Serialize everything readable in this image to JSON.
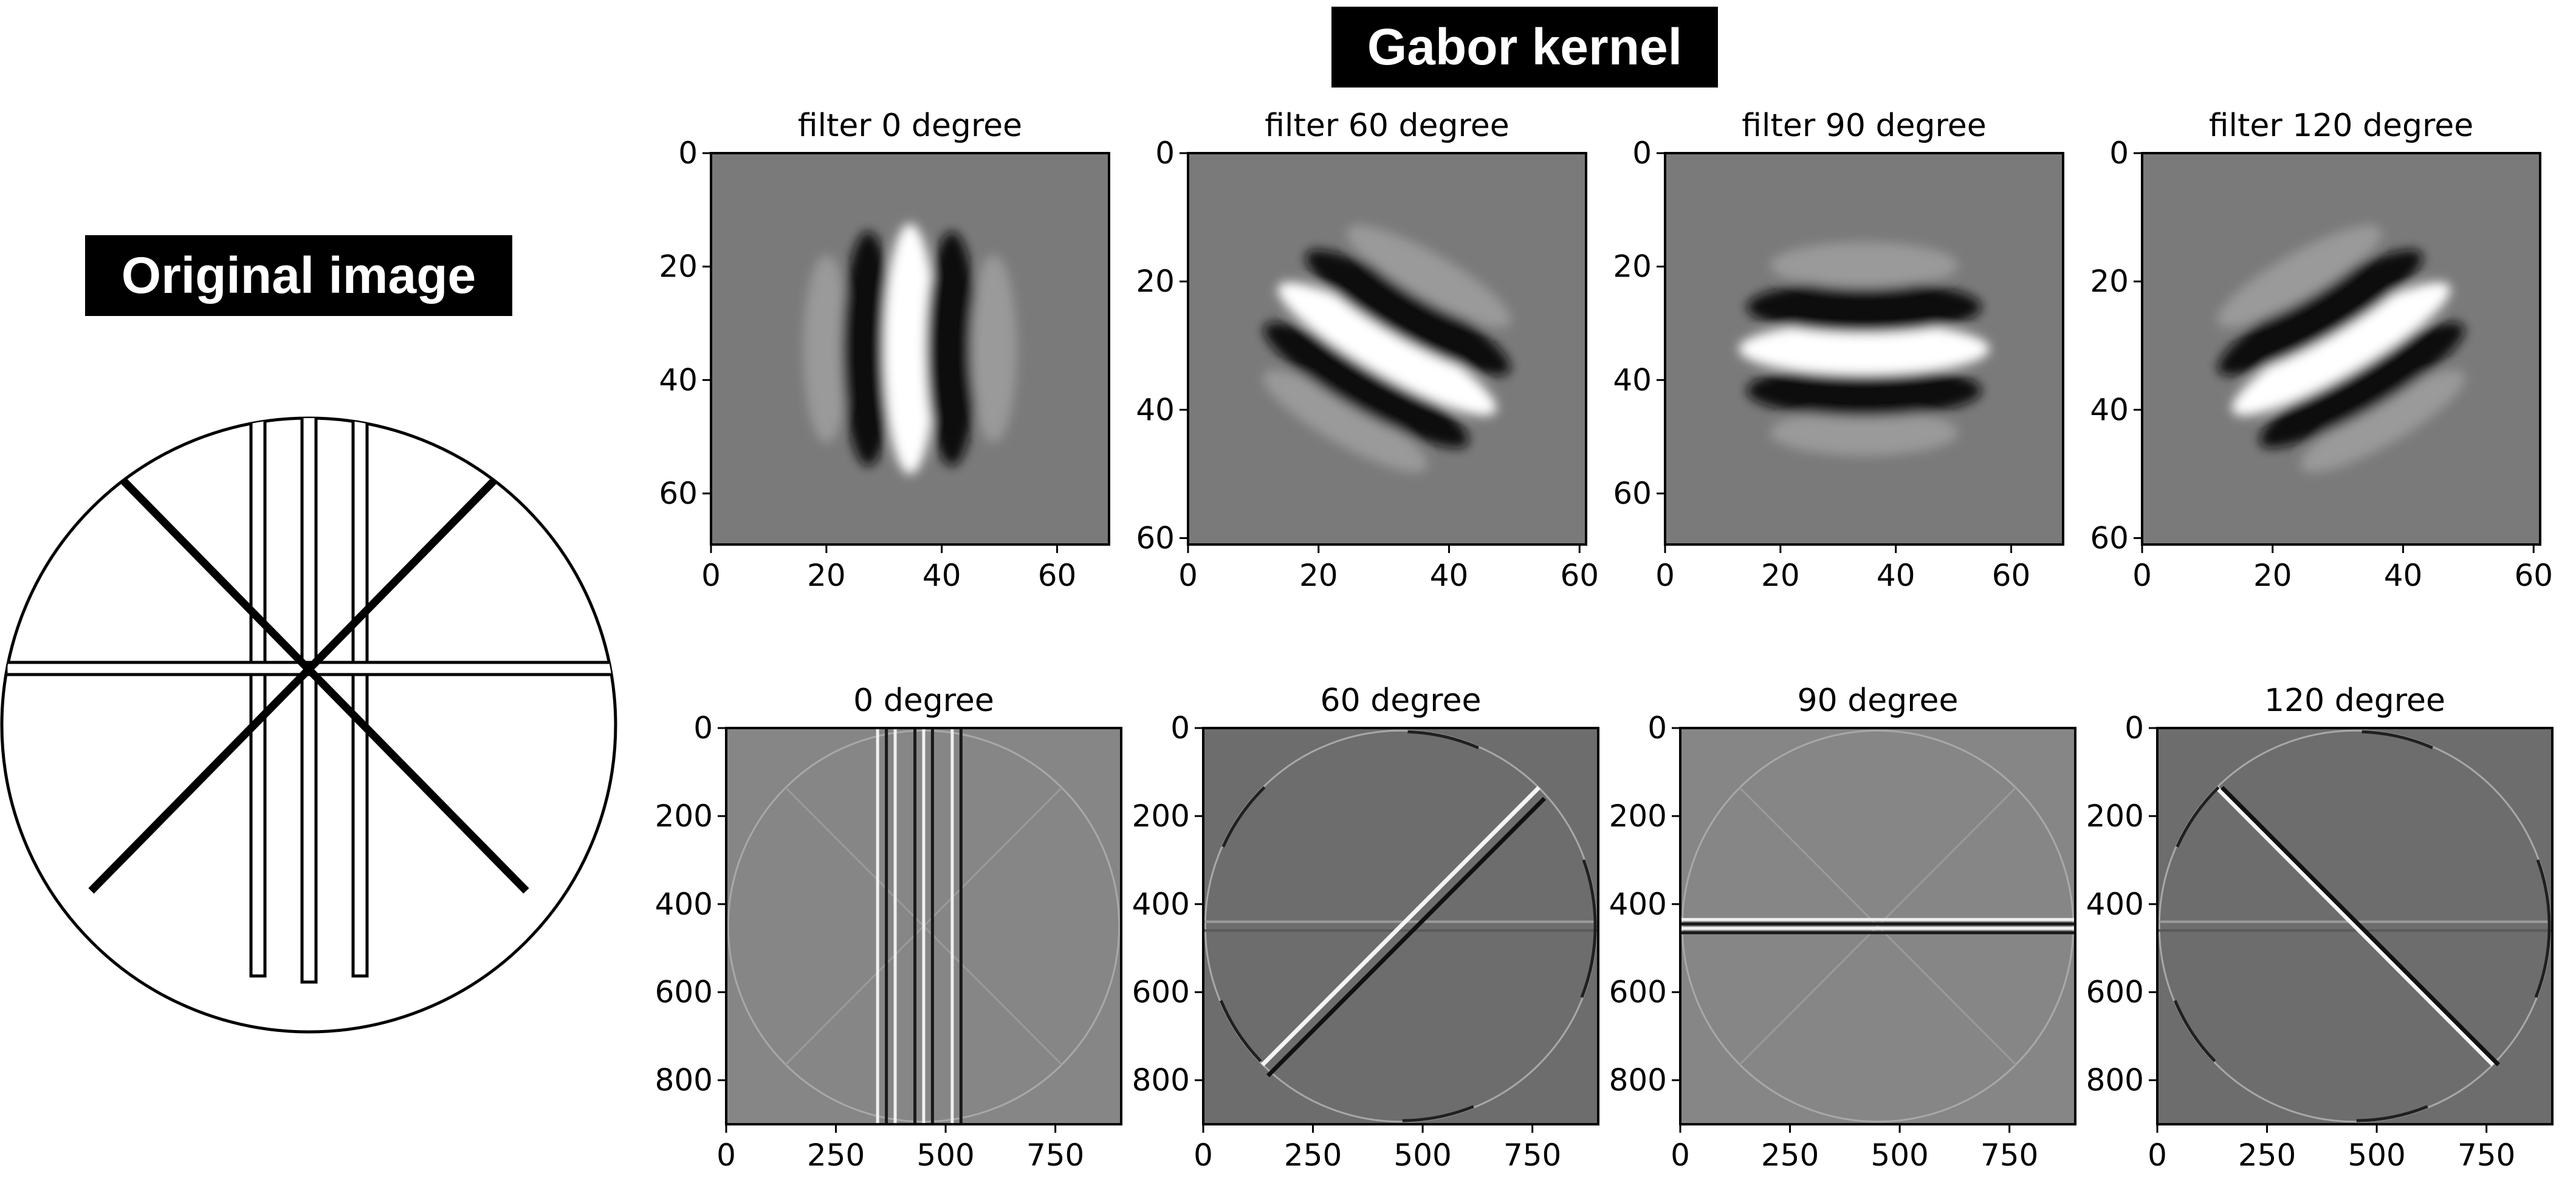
{
  "labels": {
    "original": "Original image",
    "gabor": "Gabor kernel"
  },
  "kernels": [
    {
      "title": "filter 0 degree",
      "xticks": [
        "0",
        "20",
        "40",
        "60"
      ],
      "yticks": [
        "0",
        "20",
        "40",
        "60"
      ],
      "theta": 0,
      "size": 69
    },
    {
      "title": "filter 60 degree",
      "xticks": [
        "0",
        "20",
        "40",
        "60"
      ],
      "yticks": [
        "0",
        "20",
        "40",
        "60"
      ],
      "theta": 60,
      "size": 61
    },
    {
      "title": "filter 90 degree",
      "xticks": [
        "0",
        "20",
        "40",
        "60"
      ],
      "yticks": [
        "0",
        "20",
        "40",
        "60"
      ],
      "theta": 90,
      "size": 69
    },
    {
      "title": "filter 120 degree",
      "xticks": [
        "0",
        "20",
        "40",
        "60"
      ],
      "yticks": [
        "0",
        "20",
        "40",
        "60"
      ],
      "theta": 120,
      "size": 61
    }
  ],
  "responses": [
    {
      "title": "0 degree",
      "xticks": [
        "0",
        "250",
        "500",
        "750"
      ],
      "yticks": [
        "0",
        "200",
        "400",
        "600",
        "800"
      ],
      "theta": 0,
      "size": 900
    },
    {
      "title": "60 degree",
      "xticks": [
        "0",
        "250",
        "500",
        "750"
      ],
      "yticks": [
        "0",
        "200",
        "400",
        "600",
        "800"
      ],
      "theta": 60,
      "size": 900
    },
    {
      "title": "90 degree",
      "xticks": [
        "0",
        "250",
        "500",
        "750"
      ],
      "yticks": [
        "0",
        "200",
        "400",
        "600",
        "800"
      ],
      "theta": 90,
      "size": 900
    },
    {
      "title": "120 degree",
      "xticks": [
        "0",
        "250",
        "500",
        "750"
      ],
      "yticks": [
        "0",
        "200",
        "400",
        "600",
        "800"
      ],
      "theta": 120,
      "size": 900
    }
  ]
}
